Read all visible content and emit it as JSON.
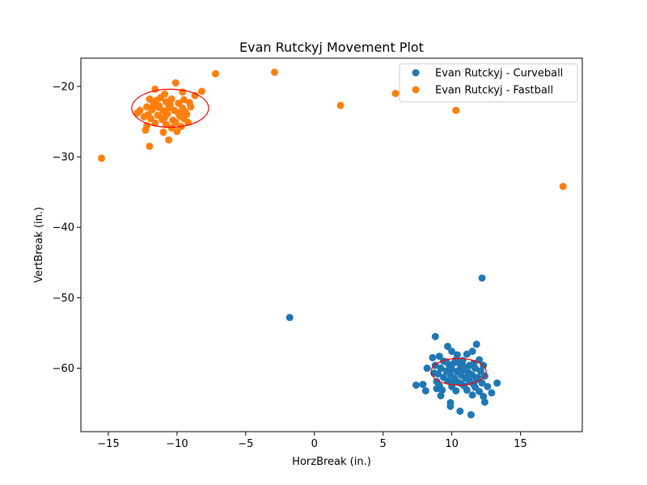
{
  "chart_data": {
    "type": "scatter",
    "title": "Evan Rutckyj Movement Plot",
    "xlabel": "HorzBreak (in.)",
    "ylabel": "VertBreak (in.)",
    "xlim": [
      -17,
      19.5
    ],
    "ylim": [
      -69,
      -16
    ],
    "xticks": [
      -15,
      -10,
      -5,
      0,
      5,
      10,
      15
    ],
    "yticks": [
      -20,
      -30,
      -40,
      -50,
      -60
    ],
    "grid": false,
    "legend_position": "top-right",
    "series": [
      {
        "name": "Evan Rutckyj - Curveball",
        "color": "#1f77b4",
        "points": [
          [
            12.2,
            -47.2
          ],
          [
            -1.8,
            -52.8
          ],
          [
            8.8,
            -55.5
          ],
          [
            11.8,
            -56.6
          ],
          [
            9.7,
            -56.9
          ],
          [
            10.0,
            -57.6
          ],
          [
            11.5,
            -57.6
          ],
          [
            9.1,
            -58.3
          ],
          [
            10.4,
            -58.1
          ],
          [
            11.1,
            -58.0
          ],
          [
            8.6,
            -58.5
          ],
          [
            12.0,
            -58.8
          ],
          [
            10.8,
            -58.9
          ],
          [
            9.4,
            -59.0
          ],
          [
            10.2,
            -59.2
          ],
          [
            11.6,
            -59.3
          ],
          [
            8.8,
            -59.6
          ],
          [
            9.8,
            -59.5
          ],
          [
            10.6,
            -59.4
          ],
          [
            11.3,
            -59.6
          ],
          [
            12.3,
            -59.6
          ],
          [
            8.2,
            -60.0
          ],
          [
            9.2,
            -60.0
          ],
          [
            10.0,
            -60.1
          ],
          [
            10.9,
            -60.2
          ],
          [
            11.7,
            -60.0
          ],
          [
            9.6,
            -60.4
          ],
          [
            10.4,
            -60.5
          ],
          [
            11.2,
            -60.6
          ],
          [
            12.1,
            -60.4
          ],
          [
            8.7,
            -60.7
          ],
          [
            9.0,
            -60.8
          ],
          [
            9.9,
            -60.9
          ],
          [
            10.7,
            -61.0
          ],
          [
            11.5,
            -61.0
          ],
          [
            12.4,
            -61.1
          ],
          [
            9.4,
            -61.3
          ],
          [
            10.2,
            -61.4
          ],
          [
            11.0,
            -61.4
          ],
          [
            11.8,
            -61.6
          ],
          [
            8.9,
            -61.9
          ],
          [
            9.7,
            -61.8
          ],
          [
            10.5,
            -62.0
          ],
          [
            11.3,
            -61.9
          ],
          [
            12.2,
            -62.1
          ],
          [
            13.3,
            -62.1
          ],
          [
            7.4,
            -62.4
          ],
          [
            7.9,
            -62.3
          ],
          [
            9.1,
            -62.5
          ],
          [
            10.0,
            -62.6
          ],
          [
            10.9,
            -62.5
          ],
          [
            11.7,
            -62.7
          ],
          [
            12.6,
            -62.6
          ],
          [
            8.1,
            -63.2
          ],
          [
            9.3,
            -63.1
          ],
          [
            10.3,
            -63.2
          ],
          [
            11.1,
            -63.1
          ],
          [
            12.0,
            -63.3
          ],
          [
            12.9,
            -63.5
          ],
          [
            9.2,
            -63.9
          ],
          [
            11.5,
            -63.8
          ],
          [
            12.3,
            -64.0
          ],
          [
            9.9,
            -64.9
          ],
          [
            12.4,
            -64.8
          ],
          [
            9.9,
            -65.4
          ],
          [
            10.6,
            -66.1
          ],
          [
            11.4,
            -66.6
          ],
          [
            10.5,
            -60.3
          ],
          [
            10.9,
            -59.8
          ],
          [
            11.4,
            -60.9
          ],
          [
            10.1,
            -61.9
          ],
          [
            9.6,
            -59.1
          ],
          [
            11.9,
            -61.3
          ],
          [
            10.3,
            -58.8
          ],
          [
            8.9,
            -62.9
          ],
          [
            10.7,
            -62.2
          ],
          [
            11.6,
            -62.3
          ]
        ]
      },
      {
        "name": "Evan Rutckyj - Fastball",
        "color": "#ff7f0e",
        "points": [
          [
            -7.2,
            -18.2
          ],
          [
            -2.9,
            -18.0
          ],
          [
            -10.1,
            -19.5
          ],
          [
            -8.2,
            -20.7
          ],
          [
            -11.6,
            -20.4
          ],
          [
            -9.6,
            -20.8
          ],
          [
            -10.9,
            -21.1
          ],
          [
            -8.7,
            -21.3
          ],
          [
            5.9,
            -21.0
          ],
          [
            -12.0,
            -21.8
          ],
          [
            -11.2,
            -21.6
          ],
          [
            -10.4,
            -21.8
          ],
          [
            -9.5,
            -21.9
          ],
          [
            -11.7,
            -22.3
          ],
          [
            -10.8,
            -22.2
          ],
          [
            -9.9,
            -22.4
          ],
          [
            -9.1,
            -22.3
          ],
          [
            1.9,
            -22.7
          ],
          [
            -12.2,
            -22.9
          ],
          [
            -11.3,
            -22.8
          ],
          [
            -10.6,
            -23.0
          ],
          [
            -9.6,
            -23.1
          ],
          [
            -9.0,
            -22.9
          ],
          [
            -12.7,
            -23.4
          ],
          [
            -11.8,
            -23.3
          ],
          [
            -11.0,
            -23.5
          ],
          [
            -10.2,
            -23.4
          ],
          [
            -9.4,
            -23.6
          ],
          [
            10.3,
            -23.4
          ],
          [
            -12.9,
            -23.8
          ],
          [
            -12.1,
            -24.0
          ],
          [
            -11.4,
            -24.1
          ],
          [
            -10.7,
            -23.9
          ],
          [
            -9.8,
            -24.2
          ],
          [
            -11.9,
            -24.6
          ],
          [
            -11.1,
            -24.7
          ],
          [
            -10.3,
            -24.8
          ],
          [
            -9.5,
            -24.6
          ],
          [
            -11.6,
            -25.2
          ],
          [
            -10.8,
            -25.4
          ],
          [
            -9.2,
            -25.1
          ],
          [
            -12.2,
            -25.6
          ],
          [
            -10.4,
            -25.9
          ],
          [
            -9.7,
            -25.7
          ],
          [
            -12.3,
            -26.2
          ],
          [
            -11.0,
            -26.5
          ],
          [
            -10.0,
            -26.4
          ],
          [
            -10.6,
            -27.6
          ],
          [
            -12.0,
            -28.5
          ],
          [
            -15.5,
            -30.2
          ],
          [
            18.1,
            -34.2
          ],
          [
            -11.5,
            -22.0
          ],
          [
            -10.9,
            -24.4
          ],
          [
            -9.9,
            -23.8
          ],
          [
            -11.3,
            -23.0
          ],
          [
            -10.5,
            -22.6
          ],
          [
            -12.4,
            -24.3
          ],
          [
            -10.1,
            -25.1
          ],
          [
            -11.7,
            -22.7
          ],
          [
            -9.3,
            -24.0
          ]
        ]
      }
    ],
    "ellipses": [
      {
        "series": "Evan Rutckyj - Fastball",
        "cx": -10.5,
        "cy": -23.1,
        "rx": 2.8,
        "ry": 2.7,
        "color": "#ff0000"
      },
      {
        "series": "Evan Rutckyj - Curveball",
        "cx": 10.5,
        "cy": -60.5,
        "rx": 2.0,
        "ry": 1.9,
        "color": "#ff0000"
      }
    ]
  }
}
